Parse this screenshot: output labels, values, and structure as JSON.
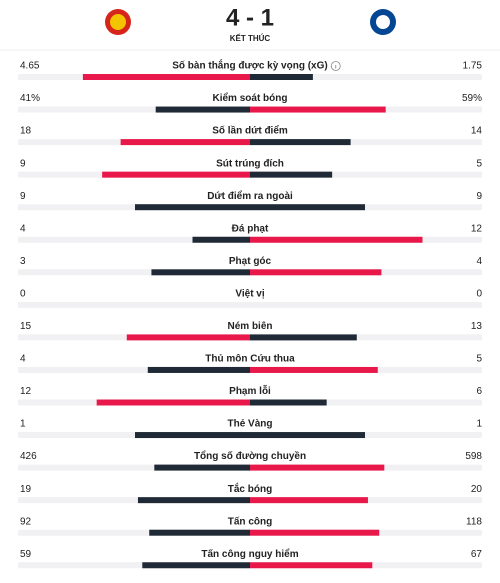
{
  "header": {
    "score": "4 - 1",
    "status": "KẾT THÚC"
  },
  "stats": [
    {
      "label": "Số bàn thắng được kỳ vọng (xG)",
      "home": 4.65,
      "away": 1.75
    },
    {
      "label": "Kiểm soát bóng",
      "home": 41,
      "away": 59,
      "home_label": "41%",
      "away_label": "59%"
    },
    {
      "label": "Số lần dứt điểm",
      "home": 18,
      "away": 14
    },
    {
      "label": "Sút trúng đích",
      "home": 9,
      "away": 5
    },
    {
      "label": "Dứt điểm ra ngoài",
      "home": 9,
      "away": 9
    },
    {
      "label": "Đá phạt",
      "home": 4,
      "away": 12
    },
    {
      "label": "Phạt góc",
      "home": 3,
      "away": 4
    },
    {
      "label": "Việt vị",
      "home": 0,
      "away": 0
    },
    {
      "label": "Ném biên",
      "home": 15,
      "away": 13
    },
    {
      "label": "Thủ môn Cứu thua",
      "home": 4,
      "away": 5
    },
    {
      "label": "Phạm lỗi",
      "home": 12,
      "away": 6
    },
    {
      "label": "Thẻ Vàng",
      "home": 1,
      "away": 1
    },
    {
      "label": "Tổng số đường chuyền",
      "home": 426,
      "away": 598
    },
    {
      "label": "Tắc bóng",
      "home": 19,
      "away": 20
    },
    {
      "label": "Tấn công",
      "home": 92,
      "away": 118
    },
    {
      "label": "Tấn công nguy hiểm",
      "home": 59,
      "away": 67
    }
  ]
}
